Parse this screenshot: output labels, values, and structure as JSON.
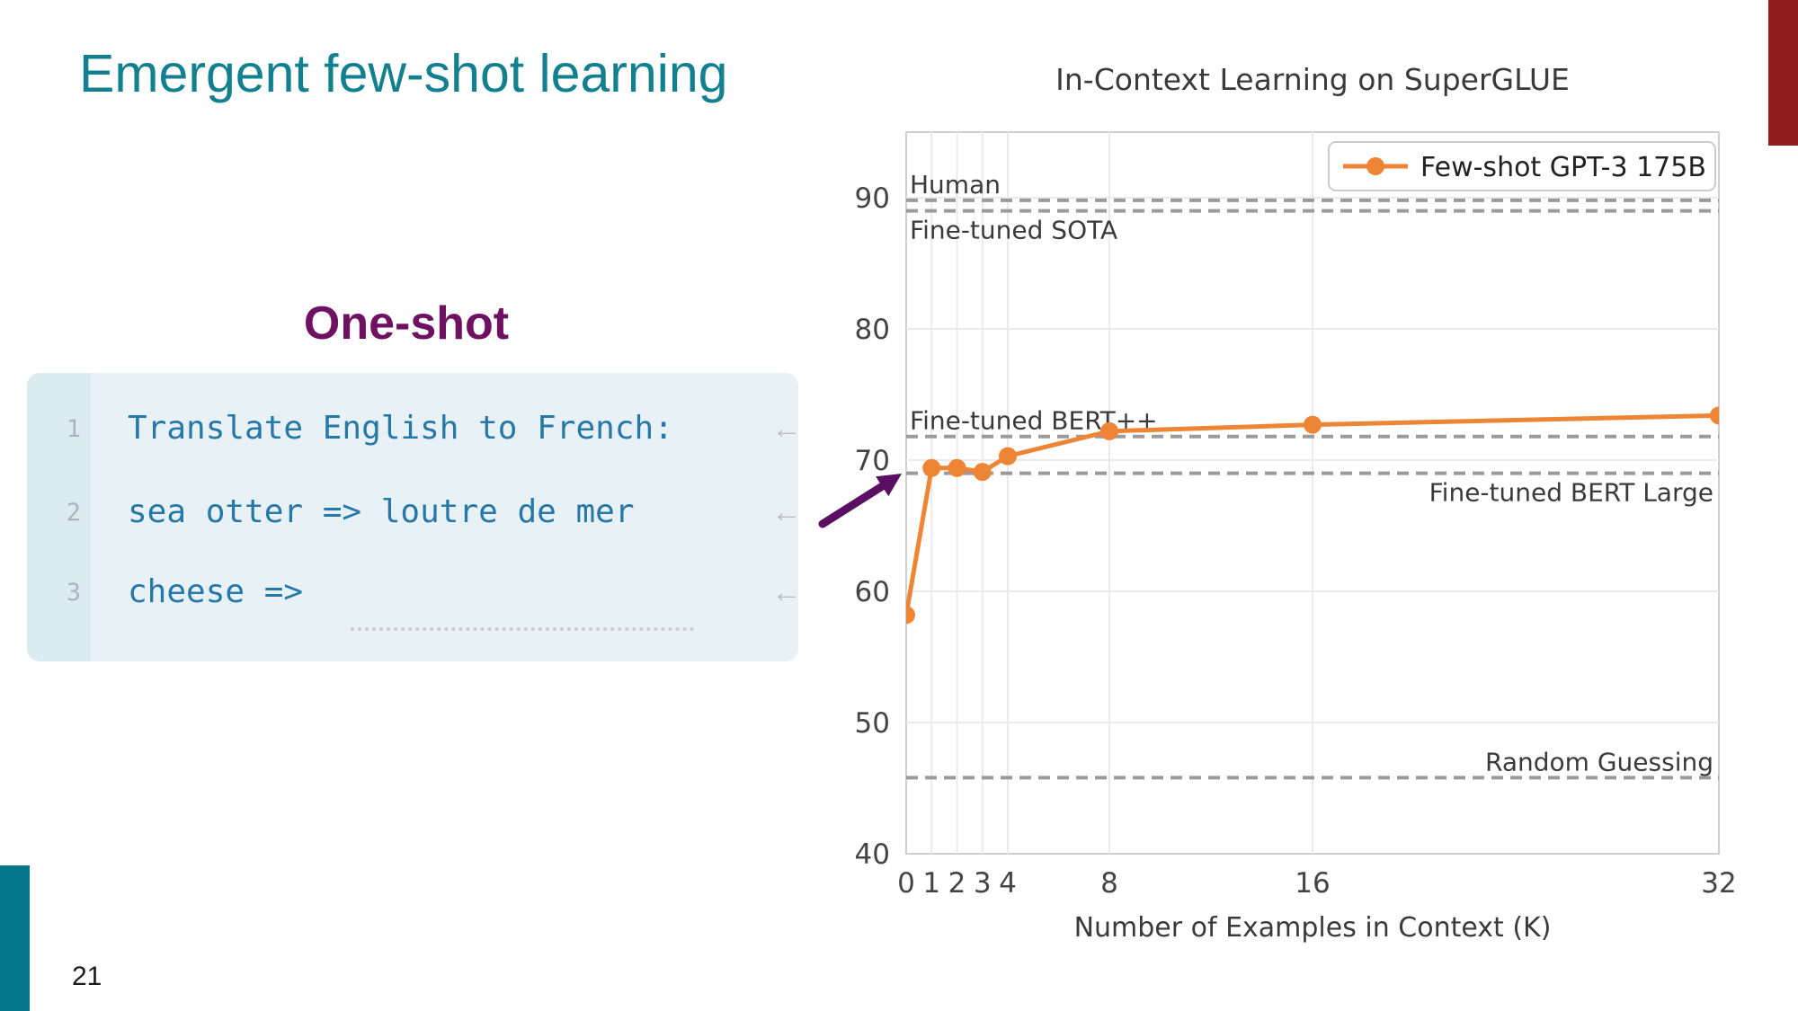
{
  "slide": {
    "title": "Emergent few-shot learning",
    "section_label": "One-shot",
    "page_number": "21",
    "accent_colors": {
      "teal_bar": "#04788a",
      "red_bar": "#8f1d1d",
      "title_teal": "#12808e",
      "section_purple": "#6e1160"
    }
  },
  "code_block": {
    "return_arrow": "←",
    "text_color": "#2678a8",
    "lines": [
      {
        "number": "1",
        "text": "Translate English to French:"
      },
      {
        "number": "2",
        "text": "sea otter => loutre de mer"
      },
      {
        "number": "3",
        "text": "cheese =>"
      }
    ]
  },
  "annotation_arrow": {
    "color": "#5a0f63",
    "points_at": "1-shot data point near score 69"
  },
  "chart_data": {
    "type": "line",
    "title": "In-Context Learning on SuperGLUE",
    "xlabel": "Number of Examples in Context (K)",
    "ylabel": "",
    "xlim": [
      0,
      32
    ],
    "ylim": [
      40,
      95
    ],
    "xticks": [
      0,
      1,
      2,
      3,
      4,
      8,
      16,
      32
    ],
    "yticks": [
      40,
      50,
      60,
      70,
      80,
      90
    ],
    "grid": true,
    "legend_position": "upper right",
    "x": [
      0,
      1,
      2,
      3,
      4,
      8,
      16,
      32
    ],
    "series": [
      {
        "name": "Few-shot GPT-3 175B",
        "color": "#ee8535",
        "values": [
          58.2,
          69.4,
          69.4,
          69.1,
          70.3,
          72.2,
          72.7,
          73.4
        ]
      }
    ],
    "reference_lines": [
      {
        "label": "Human",
        "value": 89.8,
        "label_align": "left",
        "label_valign": "above"
      },
      {
        "label": "Fine-tuned SOTA",
        "value": 89.0,
        "label_align": "left",
        "label_valign": "below"
      },
      {
        "label": "Fine-tuned BERT++",
        "value": 71.8,
        "label_align": "left",
        "label_valign": "above"
      },
      {
        "label": "Fine-tuned BERT Large",
        "value": 69.0,
        "label_align": "right",
        "label_valign": "below"
      },
      {
        "label": "Random Guessing",
        "value": 45.8,
        "label_align": "right",
        "label_valign": "above"
      }
    ],
    "style": {
      "dash_color": "#9b9b9b",
      "grid_color": "#ebebeb",
      "spine_color": "#cfcfcf",
      "text_color": "#3a3a3a"
    }
  }
}
